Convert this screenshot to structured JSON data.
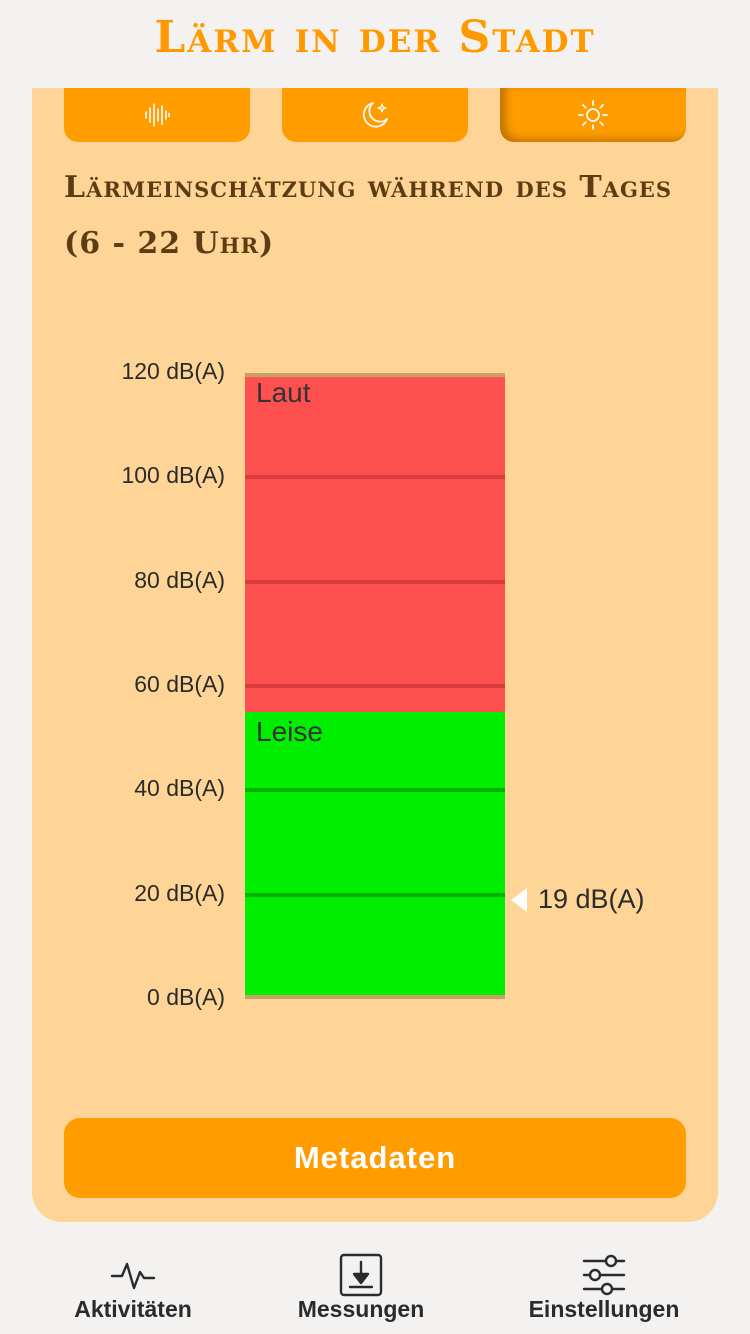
{
  "header": {
    "title": "Lärm in der Stadt"
  },
  "modes": [
    {
      "icon": "waveform-icon",
      "active": false
    },
    {
      "icon": "moon-icon",
      "active": false
    },
    {
      "icon": "sun-icon",
      "active": true
    }
  ],
  "section": {
    "title": "Lärmeinschätzung während des Tages (6 - 22 Uhr)"
  },
  "chart_data": {
    "type": "bar",
    "unit": "dB(A)",
    "ylim": [
      0,
      120
    ],
    "ticks": [
      "0 dB(A)",
      "20 dB(A)",
      "40 dB(A)",
      "60 dB(A)",
      "80 dB(A)",
      "100 dB(A)",
      "120 dB(A)"
    ],
    "tick_values": [
      0,
      20,
      40,
      60,
      80,
      100,
      120
    ],
    "zones": [
      {
        "label": "Leise",
        "from": 0,
        "to": 55,
        "color": "#00ee00",
        "line_color": "#00b300"
      },
      {
        "label": "Laut",
        "from": 55,
        "to": 120,
        "color": "#ff5050",
        "line_color": "#d83c3c"
      }
    ],
    "current": {
      "value": 19,
      "label": "19 dB(A)"
    }
  },
  "actions": {
    "metadata_label": "Metadaten"
  },
  "colors": {
    "accent": "#ff9c00",
    "card": "#fed596",
    "title_brown": "#5c3c12"
  },
  "nav": {
    "items": [
      {
        "label": "Aktivitäten",
        "icon": "activity-icon"
      },
      {
        "label": "Messungen",
        "icon": "download-box-icon"
      },
      {
        "label": "Einstellungen",
        "icon": "sliders-icon"
      }
    ]
  }
}
